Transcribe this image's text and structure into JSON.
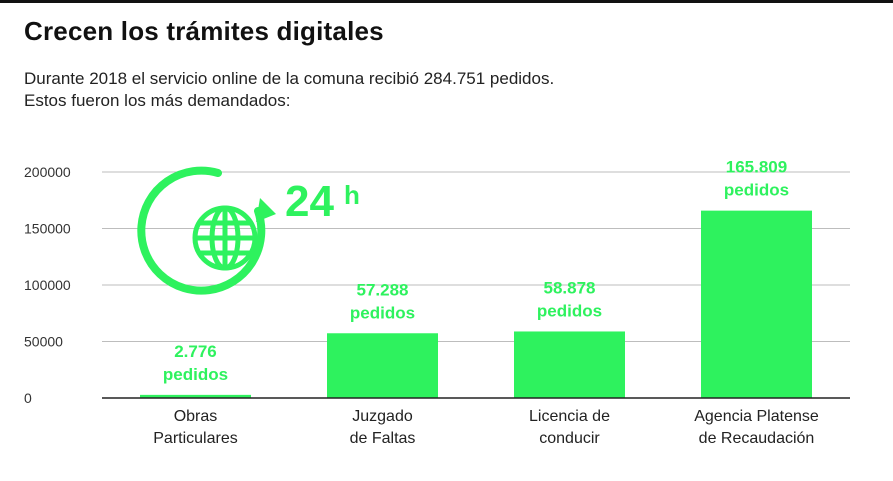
{
  "header": {
    "title": "Crecen los trámites digitales",
    "subtitle_line1": "Durante 2018 el servicio online de la comuna recibió 284.751 pedidos.",
    "subtitle_line2": "Estos fueron los más demandados:"
  },
  "icon": {
    "name": "globe-24h-icon",
    "text_24": "24",
    "text_h": "h"
  },
  "colors": {
    "bar": "#2ef25e",
    "label": "#2ef25e",
    "grid": "#bdbdbd",
    "axis": "#222222"
  },
  "chart_data": {
    "type": "bar",
    "categories": [
      [
        "Obras",
        "Particulares"
      ],
      [
        "Juzgado",
        "de Faltas"
      ],
      [
        "Licencia de",
        "conducir"
      ],
      [
        "Agencia Platense",
        "de Recaudación"
      ]
    ],
    "values": [
      2776,
      57288,
      58878,
      165809
    ],
    "value_labels": [
      "2.776",
      "57.288",
      "58.878",
      "165.809"
    ],
    "unit_label": "pedidos",
    "yticks": [
      0,
      50000,
      100000,
      150000,
      200000
    ],
    "ytick_labels": [
      "0",
      "50000",
      "100000",
      "150000",
      "200000"
    ],
    "ylim": [
      0,
      200000
    ],
    "grid": true,
    "legend": "none"
  }
}
